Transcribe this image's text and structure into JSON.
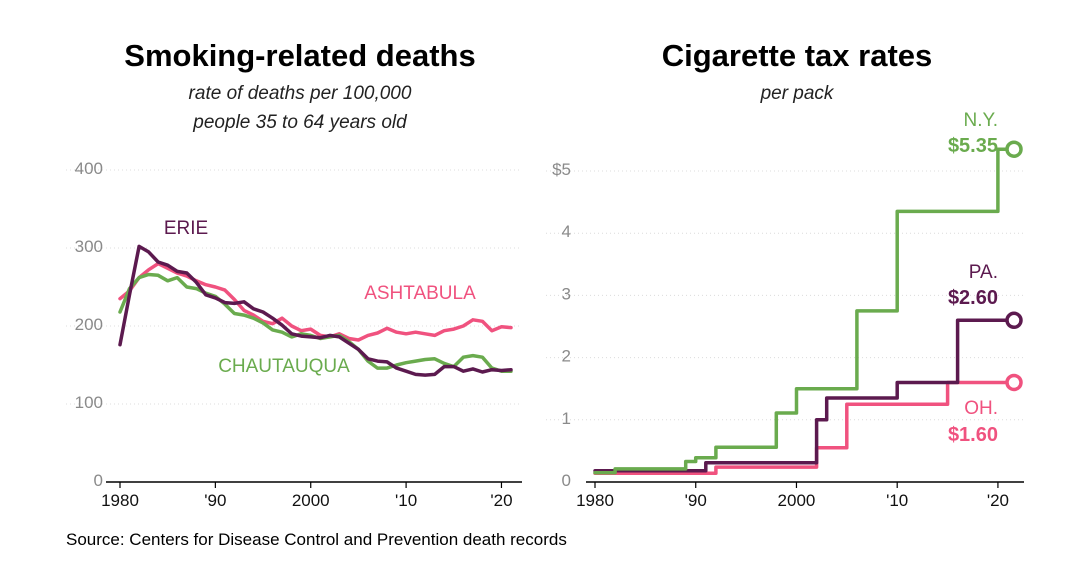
{
  "colors": {
    "erie": "#5c1a4f",
    "ashtabula": "#f0527f",
    "chautauqua": "#6aab4e"
  },
  "source": "Source: Centers for Disease Control and Prevention death records",
  "chart_data": [
    {
      "type": "line",
      "title": "Smoking-related deaths",
      "subtitle_line1": "rate of deaths per 100,000",
      "subtitle_line2": "people 35 to 64 years old",
      "xlabel": "",
      "ylabel": "",
      "xlim": [
        1980,
        2021
      ],
      "ylim": [
        0,
        400
      ],
      "yticks": [
        0,
        100,
        200,
        300,
        400
      ],
      "ytick_labels": [
        "0",
        "100",
        "200",
        "300",
        "400"
      ],
      "xticks": [
        1980,
        1990,
        2000,
        2010,
        2020
      ],
      "xtick_labels": [
        "1980",
        "'90",
        "2000",
        "'10",
        "'20"
      ],
      "grid": true,
      "series": [
        {
          "key": "erie",
          "name": "ERIE",
          "x": [
            1980,
            1981,
            1982,
            1983,
            1984,
            1985,
            1986,
            1987,
            1988,
            1989,
            1990,
            1991,
            1992,
            1993,
            1994,
            1995,
            1996,
            1997,
            1998,
            1999,
            2000,
            2001,
            2002,
            2003,
            2004,
            2005,
            2006,
            2007,
            2008,
            2009,
            2010,
            2011,
            2012,
            2013,
            2014,
            2015,
            2016,
            2017,
            2018,
            2019,
            2020,
            2021
          ],
          "values": [
            176,
            240,
            302,
            295,
            282,
            278,
            270,
            268,
            256,
            240,
            236,
            230,
            229,
            231,
            222,
            218,
            210,
            201,
            190,
            187,
            186,
            185,
            188,
            186,
            178,
            170,
            158,
            155,
            154,
            146,
            142,
            138,
            137,
            138,
            148,
            148,
            142,
            145,
            141,
            144,
            143,
            144
          ]
        },
        {
          "key": "ashtabula",
          "name": "ASHTABULA",
          "x": [
            1980,
            1981,
            1982,
            1983,
            1984,
            1985,
            1986,
            1987,
            1988,
            1989,
            1990,
            1991,
            1992,
            1993,
            1994,
            1995,
            1996,
            1997,
            1998,
            1999,
            2000,
            2001,
            2002,
            2003,
            2004,
            2005,
            2006,
            2007,
            2008,
            2009,
            2010,
            2011,
            2012,
            2013,
            2014,
            2015,
            2016,
            2017,
            2018,
            2019,
            2020,
            2021
          ],
          "values": [
            235,
            245,
            262,
            272,
            280,
            274,
            268,
            264,
            258,
            253,
            250,
            246,
            234,
            220,
            214,
            206,
            203,
            210,
            200,
            194,
            196,
            188,
            186,
            190,
            184,
            182,
            188,
            191,
            197,
            192,
            190,
            192,
            190,
            188,
            194,
            196,
            200,
            208,
            206,
            194,
            199,
            198
          ]
        },
        {
          "key": "chautauqua",
          "name": "CHAUTAUQUA",
          "x": [
            1980,
            1981,
            1982,
            1983,
            1984,
            1985,
            1986,
            1987,
            1988,
            1989,
            1990,
            1991,
            1992,
            1993,
            1994,
            1995,
            1996,
            1997,
            1998,
            1999,
            2000,
            2001,
            2002,
            2003,
            2004,
            2005,
            2006,
            2007,
            2008,
            2009,
            2010,
            2011,
            2012,
            2013,
            2014,
            2015,
            2016,
            2017,
            2018,
            2019,
            2020,
            2021
          ],
          "values": [
            218,
            248,
            262,
            266,
            265,
            258,
            262,
            250,
            248,
            242,
            238,
            228,
            216,
            214,
            210,
            204,
            195,
            192,
            186,
            190,
            188,
            184,
            186,
            188,
            180,
            170,
            155,
            146,
            146,
            150,
            153,
            155,
            157,
            158,
            152,
            148,
            160,
            162,
            160,
            146,
            142,
            142
          ]
        }
      ]
    },
    {
      "type": "line",
      "title": "Cigarette tax rates",
      "subtitle_line1": "per pack",
      "xlabel": "",
      "ylabel": "",
      "xlim": [
        1980,
        2021
      ],
      "ylim": [
        0,
        5
      ],
      "yticks": [
        0,
        1,
        2,
        3,
        4,
        5
      ],
      "ytick_labels": [
        "0",
        "1",
        "2",
        "3",
        "4",
        "$5"
      ],
      "xticks": [
        1980,
        1990,
        2000,
        2010,
        2020
      ],
      "xtick_labels": [
        "1980",
        "'90",
        "2000",
        "'10",
        "'20"
      ],
      "grid": true,
      "series": [
        {
          "key": "ny",
          "name": "N.Y.",
          "end_label": "$5.35",
          "color_key": "chautauqua",
          "x": [
            1980,
            1982,
            1982,
            1989,
            1989,
            1990,
            1990,
            1992,
            1992,
            1998,
            1998,
            1999,
            1999,
            2000,
            2000,
            2006,
            2006,
            2008,
            2008,
            2010,
            2010,
            2020,
            2020,
            2022
          ],
          "values": [
            0.15,
            0.15,
            0.21,
            0.21,
            0.33,
            0.33,
            0.39,
            0.39,
            0.56,
            0.56,
            1.11,
            1.11,
            1.11,
            1.11,
            1.5,
            1.5,
            2.75,
            2.75,
            2.75,
            2.75,
            4.35,
            4.35,
            5.35,
            5.35
          ]
        },
        {
          "key": "pa",
          "name": "PA.",
          "end_label": "$2.60",
          "color_key": "erie",
          "x": [
            1980,
            1991,
            1991,
            2002,
            2002,
            2003,
            2003,
            2010,
            2010,
            2016,
            2016,
            2022
          ],
          "values": [
            0.18,
            0.18,
            0.31,
            0.31,
            1.0,
            1.0,
            1.35,
            1.35,
            1.6,
            1.6,
            2.6,
            2.6
          ]
        },
        {
          "key": "oh",
          "name": "OH.",
          "end_label": "$1.60",
          "color_key": "ashtabula",
          "x": [
            1980,
            1992,
            1992,
            2002,
            2002,
            2003,
            2003,
            2005,
            2005,
            2015,
            2015,
            2022
          ],
          "values": [
            0.14,
            0.14,
            0.24,
            0.24,
            0.55,
            0.55,
            0.55,
            0.55,
            1.25,
            1.25,
            1.6,
            1.6
          ]
        }
      ]
    }
  ]
}
